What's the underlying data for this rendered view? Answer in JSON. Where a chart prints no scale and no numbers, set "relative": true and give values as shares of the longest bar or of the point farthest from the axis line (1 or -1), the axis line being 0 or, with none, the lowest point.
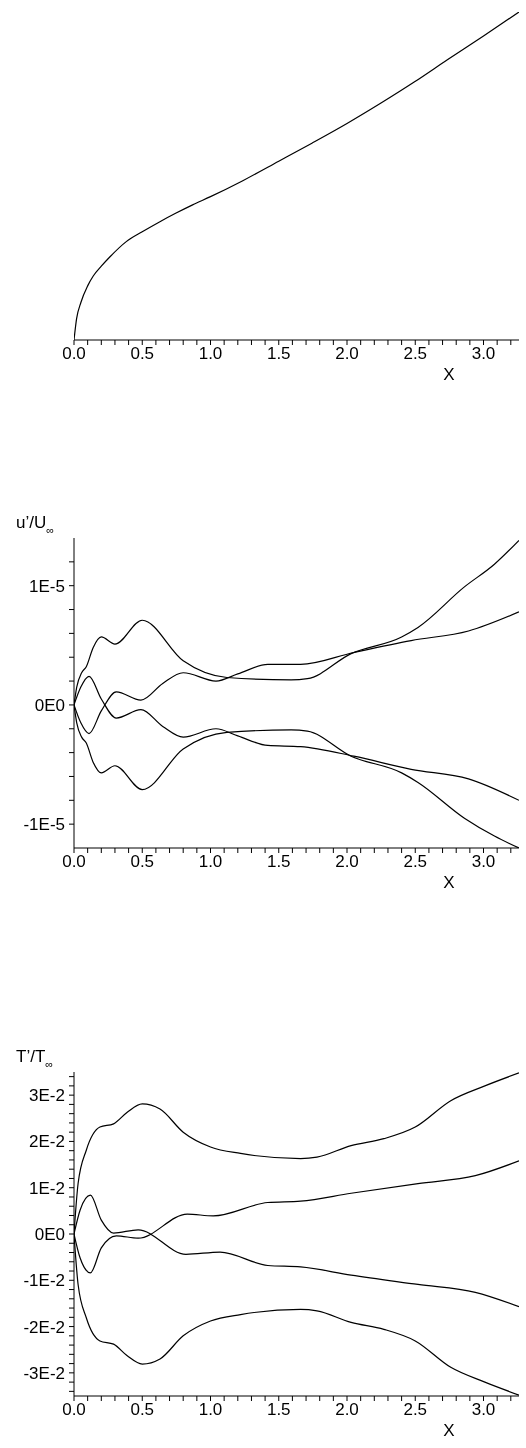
{
  "chart_data": [
    {
      "type": "line",
      "xlabel": "X",
      "relative": true,
      "tick_labels": "x",
      "marker": "none",
      "line_style": "solid",
      "grid": false,
      "legend": false,
      "xlim": [
        0,
        3.26
      ],
      "xticks": [
        {
          "value": 0,
          "label": "0.0"
        },
        {
          "value": 0.1,
          "label": null
        },
        {
          "value": 0.2,
          "label": null
        },
        {
          "value": 0.3,
          "label": null
        },
        {
          "value": 0.4,
          "label": null
        },
        {
          "value": 0.5,
          "label": "0.5"
        },
        {
          "value": 0.6,
          "label": null
        },
        {
          "value": 0.7,
          "label": null
        },
        {
          "value": 0.8,
          "label": null
        },
        {
          "value": 0.9,
          "label": null
        },
        {
          "value": 1,
          "label": "1.0"
        },
        {
          "value": 1.1,
          "label": null
        },
        {
          "value": 1.2,
          "label": null
        },
        {
          "value": 1.3,
          "label": null
        },
        {
          "value": 1.4,
          "label": null
        },
        {
          "value": 1.5,
          "label": "1.5"
        },
        {
          "value": 1.6,
          "label": null
        },
        {
          "value": 1.7,
          "label": null
        },
        {
          "value": 1.8,
          "label": null
        },
        {
          "value": 1.9,
          "label": null
        },
        {
          "value": 2,
          "label": "2.0"
        },
        {
          "value": 2.1,
          "label": null
        },
        {
          "value": 2.2,
          "label": null
        },
        {
          "value": 2.3,
          "label": null
        },
        {
          "value": 2.4,
          "label": null
        },
        {
          "value": 2.5,
          "label": "2.5"
        },
        {
          "value": 2.6,
          "label": null
        },
        {
          "value": 2.7,
          "label": null
        },
        {
          "value": 2.8,
          "label": null
        },
        {
          "value": 2.9,
          "label": null
        },
        {
          "value": 3,
          "label": "3.0"
        },
        {
          "value": 3.1,
          "label": null
        },
        {
          "value": 3.2,
          "label": null
        }
      ],
      "series": [
        {
          "color": "#000000",
          "x": [
            0,
            0.019,
            0.051,
            0.1,
            0.141,
            0.2,
            0.262,
            0.383,
            0.5,
            0.626,
            0.748,
            0.869,
            1.0,
            1.233,
            1.5,
            1.743,
            2.0,
            2.252,
            2.495,
            2.738,
            3.0,
            3.26
          ],
          "values": [
            0,
            0.065,
            0.115,
            0.165,
            0.195,
            0.225,
            0.253,
            0.3,
            0.33,
            0.36,
            0.387,
            0.412,
            0.437,
            0.485,
            0.545,
            0.6,
            0.66,
            0.723,
            0.787,
            0.855,
            0.927,
            1.0
          ]
        }
      ]
    },
    {
      "type": "line",
      "xlabel": "X",
      "ylabel": "u’/U$_{∞}$",
      "marker": "none",
      "line_style": "solid",
      "grid": false,
      "legend": false,
      "xlim": [
        0,
        3.26
      ],
      "xticks": [
        {
          "value": 0,
          "label": "0.0"
        },
        {
          "value": 0.1,
          "label": null
        },
        {
          "value": 0.2,
          "label": null
        },
        {
          "value": 0.3,
          "label": null
        },
        {
          "value": 0.4,
          "label": null
        },
        {
          "value": 0.5,
          "label": "0.5"
        },
        {
          "value": 0.6,
          "label": null
        },
        {
          "value": 0.7,
          "label": null
        },
        {
          "value": 0.8,
          "label": null
        },
        {
          "value": 0.9,
          "label": null
        },
        {
          "value": 1,
          "label": "1.0"
        },
        {
          "value": 1.1,
          "label": null
        },
        {
          "value": 1.2,
          "label": null
        },
        {
          "value": 1.3,
          "label": null
        },
        {
          "value": 1.4,
          "label": null
        },
        {
          "value": 1.5,
          "label": "1.5"
        },
        {
          "value": 1.6,
          "label": null
        },
        {
          "value": 1.7,
          "label": null
        },
        {
          "value": 1.8,
          "label": null
        },
        {
          "value": 1.9,
          "label": null
        },
        {
          "value": 2,
          "label": "2.0"
        },
        {
          "value": 2.1,
          "label": null
        },
        {
          "value": 2.2,
          "label": null
        },
        {
          "value": 2.3,
          "label": null
        },
        {
          "value": 2.4,
          "label": null
        },
        {
          "value": 2.5,
          "label": "2.5"
        },
        {
          "value": 2.6,
          "label": null
        },
        {
          "value": 2.7,
          "label": null
        },
        {
          "value": 2.8,
          "label": null
        },
        {
          "value": 2.9,
          "label": null
        },
        {
          "value": 3,
          "label": "3.0"
        },
        {
          "value": 3.1,
          "label": null
        },
        {
          "value": 3.2,
          "label": null
        }
      ],
      "ylim": [
        -1.2e-05,
        1.4e-05
      ],
      "yticks": [
        {
          "value": -1e-05,
          "label": "-1E-5"
        },
        {
          "value": -8e-06,
          "label": null
        },
        {
          "value": -6e-06,
          "label": null
        },
        {
          "value": -4e-06,
          "label": null
        },
        {
          "value": -2e-06,
          "label": null
        },
        {
          "value": 0,
          "label": "0E0"
        },
        {
          "value": 2e-06,
          "label": null
        },
        {
          "value": 4e-06,
          "label": null
        },
        {
          "value": 6e-06,
          "label": null
        },
        {
          "value": 8e-06,
          "label": null
        },
        {
          "value": 1e-05,
          "label": "1E-5"
        },
        {
          "value": 1.2e-05,
          "label": null
        }
      ],
      "series": [
        {
          "color": "#000000",
          "x": [
            0,
            0.02,
            0.056,
            0.09,
            0.14,
            0.2,
            0.3,
            0.5,
            0.8,
            1.12,
            1.59,
            1.71,
            2.03,
            2.4,
            2.52,
            2.86,
            3.08,
            3.26
          ],
          "values": [
            0,
            1.5e-06,
            2.7e-06,
            3.2e-06,
            4.8e-06,
            5.7e-06,
            5.1e-06,
            7.1e-06,
            3.7e-06,
            2.3e-06,
            2.1e-06,
            2.2e-06,
            4.3e-06,
            5.7e-06,
            6.5e-06,
            9.9e-06,
            1.18e-05,
            1.38e-05
          ]
        },
        {
          "color": "#000000",
          "x": [
            0,
            0.05,
            0.11,
            0.2,
            0.31,
            0.49,
            0.65,
            0.8,
            1.04,
            1.2,
            1.42,
            1.66,
            2.05,
            2.47,
            2.89,
            3.26
          ],
          "values": [
            0,
            -1.5e-06,
            -2.4e-06,
            -5e-07,
            1.1e-06,
            4e-07,
            1.8e-06,
            2.7e-06,
            2e-06,
            2.6e-06,
            3.4e-06,
            3.4e-06,
            4.4e-06,
            5.4e-06,
            6.2e-06,
            7.8e-06
          ]
        },
        {
          "color": "#000000",
          "x": [
            0,
            0.05,
            0.11,
            0.2,
            0.31,
            0.49,
            0.65,
            0.8,
            1.04,
            1.2,
            1.42,
            1.66,
            2.05,
            2.47,
            2.89,
            3.26
          ],
          "values": [
            0,
            1.5e-06,
            2.4e-06,
            5e-07,
            -1.1e-06,
            -4e-07,
            -1.8e-06,
            -2.7e-06,
            -2e-06,
            -2.6e-06,
            -3.4e-06,
            -3.5e-06,
            -4.3e-06,
            -5.4e-06,
            -6.2e-06,
            -8e-06
          ]
        },
        {
          "color": "#000000",
          "x": [
            0,
            0.02,
            0.056,
            0.09,
            0.14,
            0.2,
            0.3,
            0.5,
            0.8,
            1.12,
            1.59,
            1.71,
            2.03,
            2.4,
            2.52,
            2.86,
            3.08,
            3.26
          ],
          "values": [
            0,
            -1.5e-06,
            -2.7e-06,
            -3.2e-06,
            -4.8e-06,
            -5.7e-06,
            -5.1e-06,
            -7.1e-06,
            -3.7e-06,
            -2.3e-06,
            -2.1e-06,
            -2.2e-06,
            -4.3e-06,
            -5.7e-06,
            -6.5e-06,
            -9.5e-06,
            -1.1e-05,
            -1.2e-05
          ]
        }
      ]
    },
    {
      "type": "line",
      "xlabel": "X",
      "ylabel": "T’/T$_{∞}$",
      "marker": "none",
      "line_style": "solid",
      "grid": false,
      "legend": false,
      "xlim": [
        0,
        3.26
      ],
      "xticks": [
        {
          "value": 0,
          "label": "0.0"
        },
        {
          "value": 0.1,
          "label": null
        },
        {
          "value": 0.2,
          "label": null
        },
        {
          "value": 0.3,
          "label": null
        },
        {
          "value": 0.4,
          "label": null
        },
        {
          "value": 0.5,
          "label": "0.5"
        },
        {
          "value": 0.6,
          "label": null
        },
        {
          "value": 0.7,
          "label": null
        },
        {
          "value": 0.8,
          "label": null
        },
        {
          "value": 0.9,
          "label": null
        },
        {
          "value": 1,
          "label": "1.0"
        },
        {
          "value": 1.1,
          "label": null
        },
        {
          "value": 1.2,
          "label": null
        },
        {
          "value": 1.3,
          "label": null
        },
        {
          "value": 1.4,
          "label": null
        },
        {
          "value": 1.5,
          "label": "1.5"
        },
        {
          "value": 1.6,
          "label": null
        },
        {
          "value": 1.7,
          "label": null
        },
        {
          "value": 1.8,
          "label": null
        },
        {
          "value": 1.9,
          "label": null
        },
        {
          "value": 2,
          "label": "2.0"
        },
        {
          "value": 2.1,
          "label": null
        },
        {
          "value": 2.2,
          "label": null
        },
        {
          "value": 2.3,
          "label": null
        },
        {
          "value": 2.4,
          "label": null
        },
        {
          "value": 2.5,
          "label": "2.5"
        },
        {
          "value": 2.6,
          "label": null
        },
        {
          "value": 2.7,
          "label": null
        },
        {
          "value": 2.8,
          "label": null
        },
        {
          "value": 2.9,
          "label": null
        },
        {
          "value": 3,
          "label": "3.0"
        },
        {
          "value": 3.1,
          "label": null
        },
        {
          "value": 3.2,
          "label": null
        }
      ],
      "ylim": [
        -0.035,
        0.035
      ],
      "yticks": [
        {
          "value": -0.034,
          "label": null
        },
        {
          "value": -0.032,
          "label": null
        },
        {
          "value": -0.03,
          "label": "-3E-2"
        },
        {
          "value": -0.028,
          "label": null
        },
        {
          "value": -0.026,
          "label": null
        },
        {
          "value": -0.024,
          "label": null
        },
        {
          "value": -0.022,
          "label": null
        },
        {
          "value": -0.02,
          "label": "-2E-2"
        },
        {
          "value": -0.018,
          "label": null
        },
        {
          "value": -0.016,
          "label": null
        },
        {
          "value": -0.014,
          "label": null
        },
        {
          "value": -0.012,
          "label": null
        },
        {
          "value": -0.01,
          "label": "-1E-2"
        },
        {
          "value": -0.008,
          "label": null
        },
        {
          "value": -0.006,
          "label": null
        },
        {
          "value": -0.004,
          "label": null
        },
        {
          "value": -0.002,
          "label": null
        },
        {
          "value": 0,
          "label": "0E0"
        },
        {
          "value": 0.002,
          "label": null
        },
        {
          "value": 0.004,
          "label": null
        },
        {
          "value": 0.006,
          "label": null
        },
        {
          "value": 0.008,
          "label": null
        },
        {
          "value": 0.01,
          "label": "1E-2"
        },
        {
          "value": 0.012,
          "label": null
        },
        {
          "value": 0.014,
          "label": null
        },
        {
          "value": 0.016,
          "label": null
        },
        {
          "value": 0.018,
          "label": null
        },
        {
          "value": 0.02,
          "label": "2E-2"
        },
        {
          "value": 0.022,
          "label": null
        },
        {
          "value": 0.024,
          "label": null
        },
        {
          "value": 0.026,
          "label": null
        },
        {
          "value": 0.028,
          "label": null
        },
        {
          "value": 0.03,
          "label": "3E-2"
        },
        {
          "value": 0.032,
          "label": null
        },
        {
          "value": 0.034,
          "label": null
        }
      ],
      "series": [
        {
          "color": "#000000",
          "x": [
            0,
            0.03,
            0.09,
            0.19,
            0.29,
            0.39,
            0.5,
            0.63,
            0.8,
            1.0,
            1.22,
            1.66,
            1.78,
            2.03,
            2.27,
            2.5,
            2.76,
            3.01,
            3.26
          ],
          "values": [
            0,
            0.0109,
            0.0181,
            0.0231,
            0.0238,
            0.0263,
            0.0281,
            0.027,
            0.022,
            0.0188,
            0.0174,
            0.0163,
            0.0166,
            0.0191,
            0.0206,
            0.0231,
            0.0288,
            0.032,
            0.0348
          ]
        },
        {
          "color": "#000000",
          "x": [
            0,
            0.045,
            0.12,
            0.2,
            0.29,
            0.47,
            0.82,
            1.07,
            1.42,
            1.66,
            2.03,
            2.52,
            2.94,
            3.26
          ],
          "values": [
            0,
            0.0052,
            0.0084,
            0.003,
            0.0002,
            0.0009,
            -0.0044,
            -0.0039,
            -0.0068,
            -0.0071,
            -0.0089,
            -0.0109,
            -0.0126,
            -0.0157
          ]
        },
        {
          "color": "#000000",
          "x": [
            0,
            0.045,
            0.12,
            0.2,
            0.31,
            0.47,
            0.83,
            1.02,
            1.42,
            1.66,
            2.03,
            2.52,
            2.94,
            3.26
          ],
          "values": [
            0,
            -0.0052,
            -0.0084,
            -0.003,
            -0.0004,
            -0.0009,
            0.0043,
            0.0039,
            0.0068,
            0.0071,
            0.0088,
            0.0109,
            0.0126,
            0.0158
          ]
        },
        {
          "color": "#000000",
          "x": [
            0,
            0.03,
            0.09,
            0.19,
            0.29,
            0.39,
            0.5,
            0.63,
            0.8,
            1.0,
            1.22,
            1.66,
            1.78,
            2.03,
            2.27,
            2.5,
            2.76,
            3.01,
            3.26
          ],
          "values": [
            0,
            -0.0109,
            -0.0181,
            -0.0231,
            -0.0238,
            -0.0263,
            -0.0281,
            -0.027,
            -0.022,
            -0.0188,
            -0.0174,
            -0.0163,
            -0.0166,
            -0.0191,
            -0.0206,
            -0.0231,
            -0.0288,
            -0.032,
            -0.0348
          ]
        }
      ]
    }
  ]
}
